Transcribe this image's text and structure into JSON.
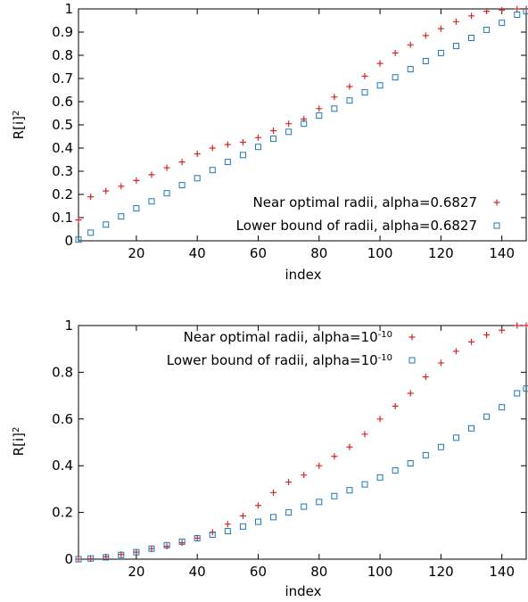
{
  "chart_data": [
    {
      "type": "scatter",
      "title": "",
      "xlabel": "index",
      "ylabel": "R[i]",
      "ylabel_sup": "2",
      "xlim": [
        1,
        148
      ],
      "ylim": [
        0,
        1
      ],
      "x_ticks": [
        20,
        40,
        60,
        80,
        100,
        120,
        140
      ],
      "y_ticks": [
        "0",
        "0.1",
        "0.2",
        "0.3",
        "0.4",
        "0.5",
        "0.6",
        "0.7",
        "0.8",
        "0.9",
        "1"
      ],
      "grid": false,
      "legend_position": "bottom-right",
      "x": [
        1,
        5,
        10,
        15,
        20,
        25,
        30,
        35,
        40,
        45,
        50,
        55,
        60,
        65,
        70,
        75,
        80,
        85,
        90,
        95,
        100,
        105,
        110,
        115,
        120,
        125,
        130,
        135,
        140,
        145,
        148
      ],
      "series": [
        {
          "name": "Near optimal radii, alpha=0.6827",
          "marker": "plus",
          "color": "#d62728",
          "values": [
            0.09,
            0.19,
            0.215,
            0.235,
            0.26,
            0.285,
            0.315,
            0.34,
            0.375,
            0.4,
            0.415,
            0.425,
            0.445,
            0.475,
            0.505,
            0.525,
            0.57,
            0.62,
            0.665,
            0.71,
            0.765,
            0.81,
            0.845,
            0.885,
            0.915,
            0.945,
            0.97,
            0.99,
            0.995,
            1.0,
            1.0
          ]
        },
        {
          "name": "Lower bound of radii, alpha=0.6827",
          "marker": "square",
          "color": "#1f77b4",
          "values": [
            0.005,
            0.035,
            0.07,
            0.105,
            0.14,
            0.17,
            0.205,
            0.24,
            0.27,
            0.305,
            0.34,
            0.37,
            0.405,
            0.44,
            0.47,
            0.505,
            0.54,
            0.57,
            0.605,
            0.64,
            0.67,
            0.705,
            0.74,
            0.775,
            0.81,
            0.84,
            0.875,
            0.91,
            0.94,
            0.975,
            0.99
          ]
        }
      ]
    },
    {
      "type": "scatter",
      "title": "",
      "xlabel": "index",
      "ylabel": "R[i]",
      "ylabel_sup": "2",
      "xlim": [
        1,
        148
      ],
      "ylim": [
        0,
        1
      ],
      "x_ticks": [
        20,
        40,
        60,
        80,
        100,
        120,
        140
      ],
      "y_ticks": [
        "0",
        "0.2",
        "0.4",
        "0.6",
        "0.8",
        "1"
      ],
      "grid": false,
      "legend_position": "top-center",
      "x": [
        1,
        5,
        10,
        15,
        20,
        25,
        30,
        35,
        40,
        45,
        50,
        55,
        60,
        65,
        70,
        75,
        80,
        85,
        90,
        95,
        100,
        105,
        110,
        115,
        120,
        125,
        130,
        135,
        140,
        145,
        148
      ],
      "series": [
        {
          "name": "Near optimal radii, alpha=10",
          "name_sup": "-10",
          "marker": "plus",
          "color": "#d62728",
          "values": [
            0.0,
            0.002,
            0.01,
            0.02,
            0.03,
            0.045,
            0.055,
            0.07,
            0.09,
            0.115,
            0.15,
            0.185,
            0.23,
            0.285,
            0.33,
            0.36,
            0.4,
            0.44,
            0.48,
            0.535,
            0.6,
            0.655,
            0.71,
            0.78,
            0.84,
            0.89,
            0.93,
            0.96,
            0.98,
            1.0,
            1.0
          ]
        },
        {
          "name": "Lower bound of radii, alpha=10",
          "name_sup": "-10",
          "marker": "square",
          "color": "#1f77b4",
          "values": [
            0.0,
            0.003,
            0.008,
            0.018,
            0.03,
            0.045,
            0.06,
            0.075,
            0.09,
            0.105,
            0.12,
            0.14,
            0.16,
            0.18,
            0.2,
            0.225,
            0.245,
            0.27,
            0.295,
            0.32,
            0.35,
            0.38,
            0.41,
            0.445,
            0.48,
            0.52,
            0.56,
            0.61,
            0.65,
            0.71,
            0.73
          ]
        }
      ]
    }
  ]
}
